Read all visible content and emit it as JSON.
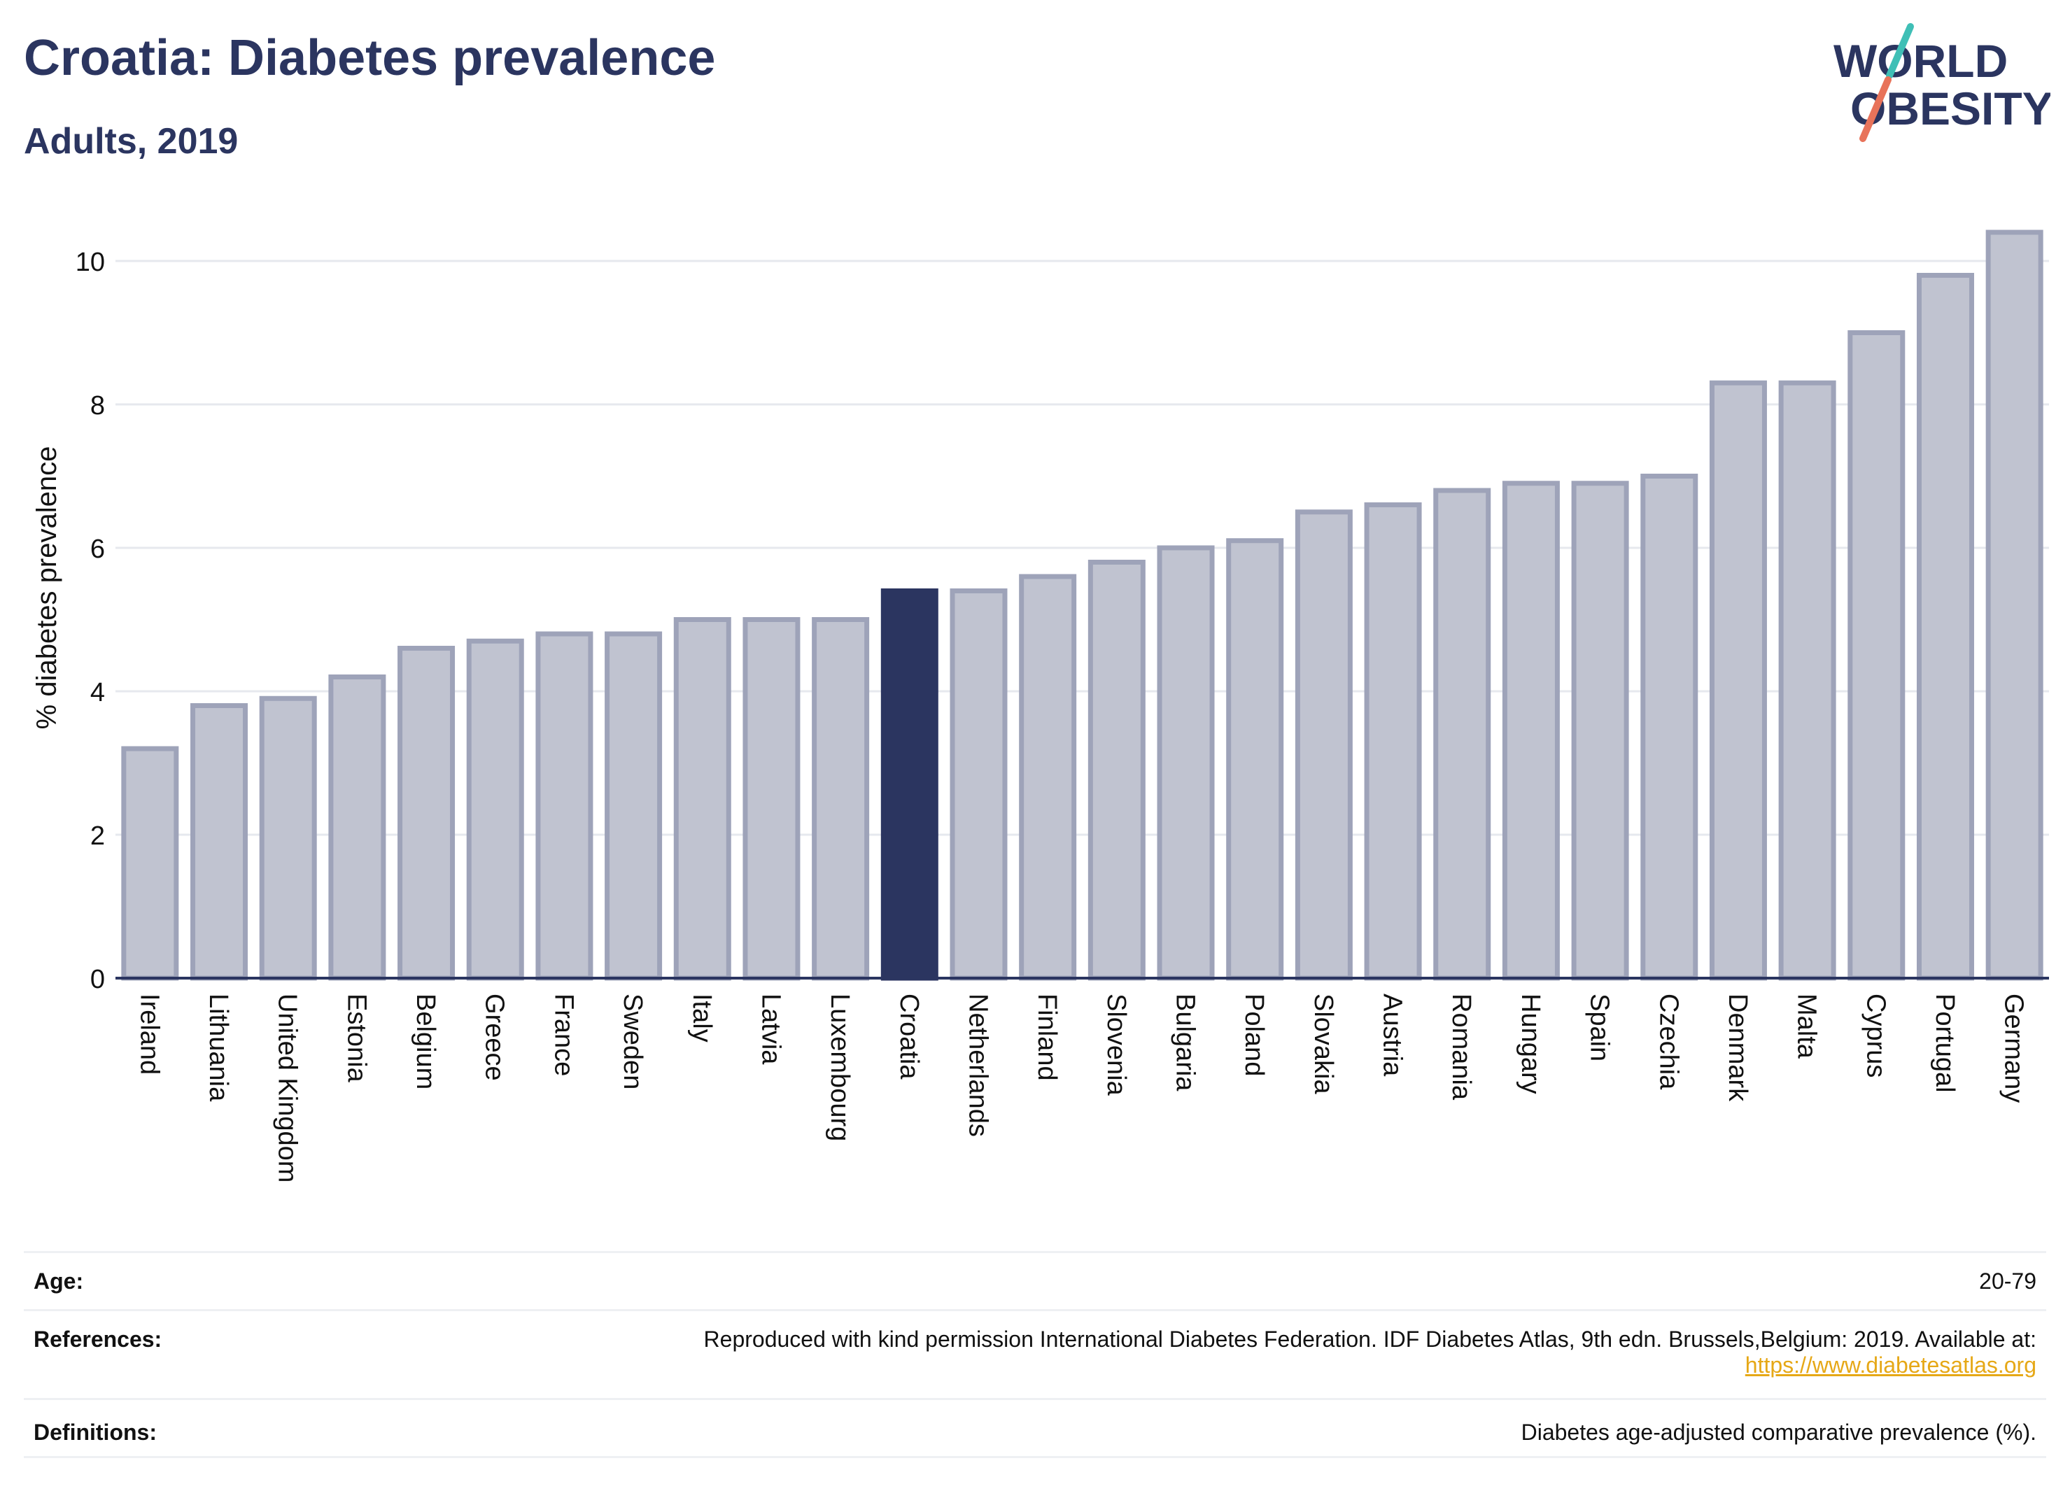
{
  "header": {
    "title": "Croatia: Diabetes prevalence",
    "subtitle": "Adults, 2019"
  },
  "logo": {
    "line1": "WORLD",
    "line2": "OBESITY",
    "colors": {
      "text": "#2b3560",
      "slash_top": "#3fbfb6",
      "slash_bottom": "#e8735a"
    }
  },
  "chart_data": {
    "type": "bar",
    "ylabel": "% diabetes prevalence",
    "xlabel": "",
    "ylim": [
      0,
      10.8
    ],
    "yticks": [
      0,
      2,
      4,
      6,
      8,
      10
    ],
    "grid": true,
    "highlight": "Croatia",
    "colors": {
      "bar": "#c0c3d0",
      "bar_edge": "#9ea3b9",
      "highlight": "#2b3560",
      "grid": "#e6e8ee",
      "axis": "#2b3560"
    },
    "categories": [
      "Ireland",
      "Lithuania",
      "United Kingdom",
      "Estonia",
      "Belgium",
      "Greece",
      "France",
      "Sweden",
      "Italy",
      "Latvia",
      "Luxembourg",
      "Croatia",
      "Netherlands",
      "Finland",
      "Slovenia",
      "Bulgaria",
      "Poland",
      "Slovakia",
      "Austria",
      "Romania",
      "Hungary",
      "Spain",
      "Czechia",
      "Denmark",
      "Malta",
      "Cyprus",
      "Portugal",
      "Germany"
    ],
    "values": [
      3.2,
      3.8,
      3.9,
      4.2,
      4.6,
      4.7,
      4.8,
      4.8,
      5.0,
      5.0,
      5.0,
      5.4,
      5.4,
      5.6,
      5.8,
      6.0,
      6.1,
      6.5,
      6.6,
      6.8,
      6.9,
      6.9,
      7.0,
      8.3,
      8.3,
      9.0,
      9.8,
      10.4
    ]
  },
  "info": {
    "age": {
      "label": "Age:",
      "value": "20-79"
    },
    "references": {
      "label": "References:",
      "value": "Reproduced with kind permission International Diabetes Federation. IDF Diabetes Atlas, 9th edn. Brussels,Belgium: 2019. Available at:",
      "link": "https://www.diabetesatlas.org"
    },
    "definitions": {
      "label": "Definitions:",
      "value": "Diabetes age-adjusted comparative prevalence (%)."
    }
  }
}
